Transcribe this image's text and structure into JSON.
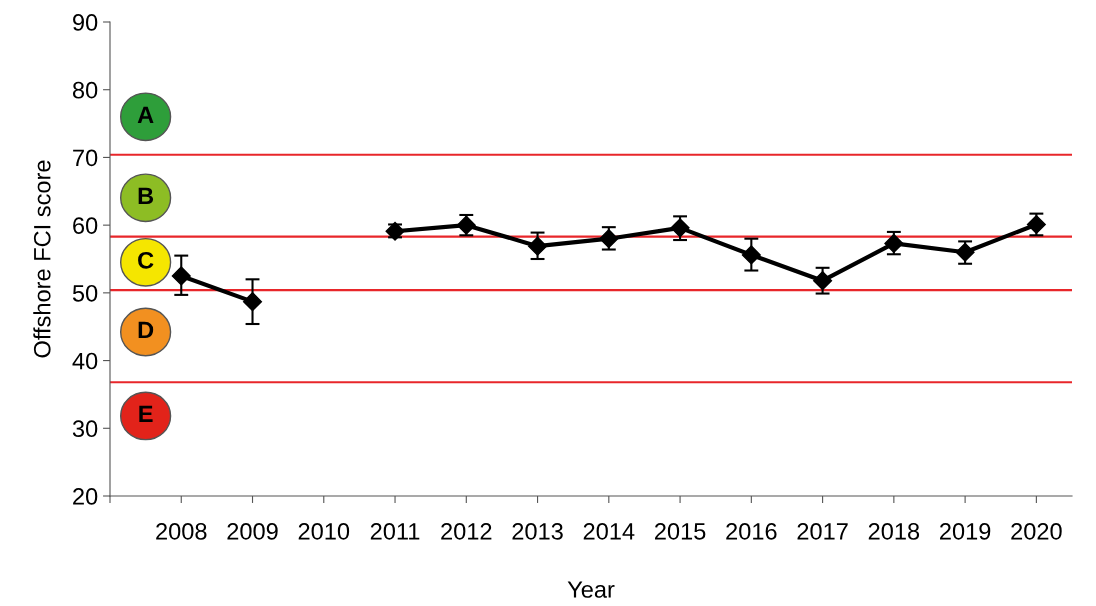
{
  "chart_data": {
    "type": "line",
    "xlabel": "Year",
    "ylabel": "Offshore FCI score",
    "categories": [
      null,
      "2008",
      "2009",
      "2010",
      "2011",
      "2012",
      "2013",
      "2014",
      "2015",
      "2016",
      "2017",
      "2018",
      "2019",
      "2020"
    ],
    "series": [
      {
        "color": "#000000",
        "values": [
          null,
          52.5,
          48.7,
          null,
          59.1,
          60.0,
          56.9,
          58.0,
          59.6,
          55.6,
          51.8,
          57.3,
          56.0,
          60.1
        ],
        "errors": [
          null,
          [
            49.7,
            55.5
          ],
          [
            45.4,
            52.0
          ],
          null,
          [
            58.2,
            60.1
          ],
          [
            58.5,
            61.5
          ],
          [
            55.0,
            58.9
          ],
          [
            56.4,
            59.7
          ],
          [
            57.8,
            61.3
          ],
          [
            53.3,
            58.0
          ],
          [
            49.9,
            53.7
          ],
          [
            55.7,
            59.0
          ],
          [
            54.3,
            57.6
          ],
          [
            58.5,
            61.7
          ]
        ]
      }
    ],
    "ylim": [
      20,
      90
    ],
    "yticks": [
      20,
      30,
      40,
      50,
      60,
      70,
      80,
      90
    ],
    "ref_lines": [
      {
        "axis": "y",
        "value": 70.4,
        "color": "#e8262a"
      },
      {
        "axis": "y",
        "value": 58.3,
        "color": "#e8262a"
      },
      {
        "axis": "y",
        "value": 50.4,
        "color": "#e8262a"
      },
      {
        "axis": "y",
        "value": 36.8,
        "color": "#e8262a"
      }
    ],
    "annotations": [
      "A",
      "B",
      "C",
      "D",
      "E"
    ],
    "marker": "diamond",
    "line_style": "solid",
    "grid": false,
    "legend": false
  }
}
